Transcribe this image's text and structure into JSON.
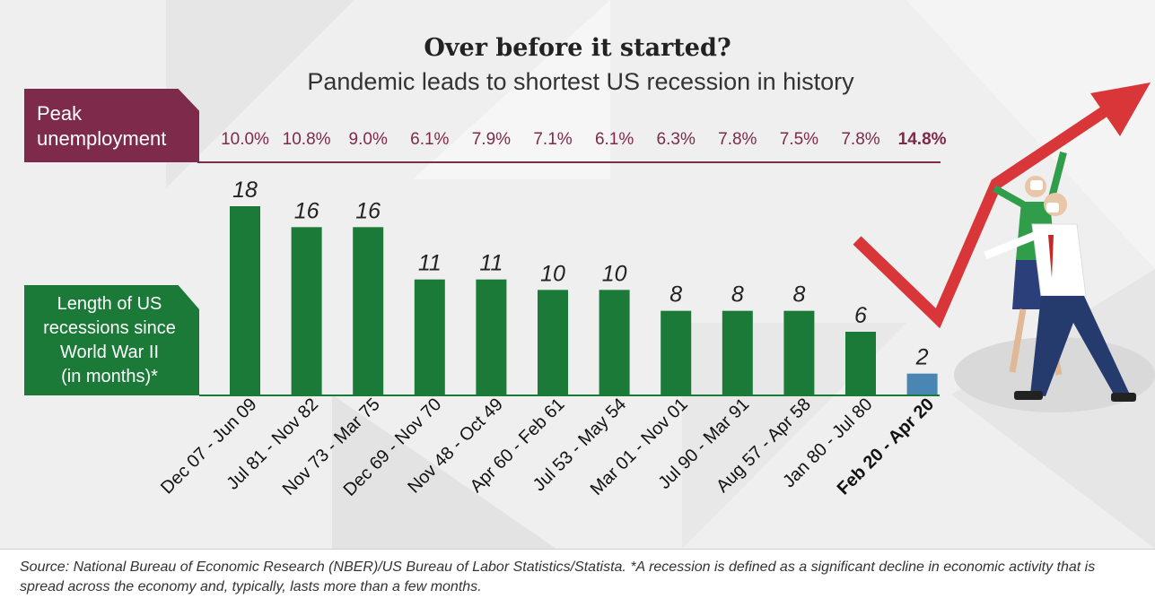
{
  "header": {
    "title": "Over before it started?",
    "subtitle": "Pandemic leads to shortest US recession in history"
  },
  "labels": {
    "peak": "Peak\nunemployment",
    "length": "Length of US\nrecessions since\nWorld War II\n(in months)*"
  },
  "source": "Source: National Bureau of Economic Research (NBER)/US Bureau of Labor Statistics/Statista. *A recession is defined as a significant decline in economic activity that is spread across the economy and, typically, lasts more than a few months.",
  "colors": {
    "bar": "#1b7a37",
    "highlight_bar": "#4a86b4",
    "maroon": "#7d2a4b",
    "arrow": "#d9363a"
  },
  "illustration": {
    "icon": "rising-arrow-with-masked-people-illustration"
  },
  "chart_data": {
    "type": "bar",
    "categories": [
      "Dec 07 - Jun 09",
      "Jul 81 - Nov 82",
      "Nov 73 - Mar 75",
      "Dec 69 - Nov 70",
      "Nov 48 - Oct 49",
      "Apr 60 - Feb 61",
      "Jul 53 - May 54",
      "Mar 01 - Nov 01",
      "Jul 90 - Mar 91",
      "Aug 57 - Apr 58",
      "Jan 80 - Jul 80",
      "Feb 20 - Apr 20"
    ],
    "values": [
      18,
      16,
      16,
      11,
      11,
      10,
      10,
      8,
      8,
      8,
      6,
      2
    ],
    "value_labels": [
      "18",
      "16",
      "16",
      "11",
      "11",
      "10",
      "10",
      "8",
      "8",
      "8",
      "6",
      "2"
    ],
    "peak_unemployment": [
      "10.0%",
      "10.8%",
      "9.0%",
      "6.1%",
      "7.9%",
      "7.1%",
      "6.1%",
      "6.3%",
      "7.8%",
      "7.5%",
      "7.8%",
      "14.8%"
    ],
    "highlighted": "Feb 20 - Apr 20",
    "ylim": [
      0,
      18
    ]
  }
}
